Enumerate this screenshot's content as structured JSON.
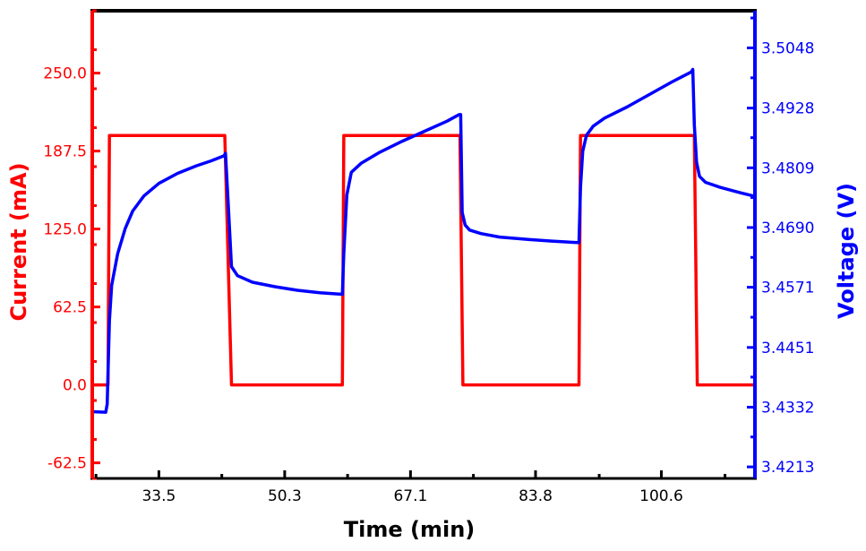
{
  "chart_data": {
    "type": "line",
    "title": "",
    "xlabel": "Time (min)",
    "ylabel_left": "Current (mA)",
    "ylabel_right": "Voltage (V)",
    "xlim": [
      24.6,
      113.1
    ],
    "ylim_left": [
      -75.0,
      300.0
    ],
    "ylim_right": [
      3.419,
      3.5122
    ],
    "x_ticks": [
      33.5,
      50.3,
      67.1,
      83.8,
      100.6
    ],
    "x_tick_labels": [
      "33.5",
      "50.3",
      "67.1",
      "83.8",
      "100.6"
    ],
    "y_left_ticks": [
      -62.5,
      0.0,
      62.5,
      125.0,
      187.5,
      250.0
    ],
    "y_left_tick_labels": [
      "-62.5",
      "0.0",
      "62.5",
      "125.0",
      "187.5",
      "250.0"
    ],
    "y_right_ticks": [
      3.4213,
      3.4332,
      3.4451,
      3.4571,
      3.469,
      3.4809,
      3.4928,
      3.5048
    ],
    "y_right_tick_labels": [
      "3.4213",
      "3.4332",
      "3.4451",
      "3.4571",
      "3.4690",
      "3.4809",
      "3.4928",
      "3.5048"
    ],
    "grid": false,
    "series": [
      {
        "name": "Current (mA)",
        "axis": "left",
        "color": "#ff0000",
        "x": [
          24.6,
          26.7,
          26.9,
          42.3,
          43.2,
          58.0,
          58.2,
          73.7,
          74.1,
          89.6,
          89.8,
          105.0,
          105.4,
          113.1
        ],
        "values": [
          0.0,
          0.0,
          200.0,
          200.0,
          0.0,
          0.0,
          200.0,
          200.0,
          0.0,
          0.0,
          200.0,
          200.0,
          0.0,
          0.0
        ]
      },
      {
        "name": "Voltage (V)",
        "axis": "right",
        "color": "#0000ff",
        "x": [
          24.6,
          26.4,
          26.6,
          26.9,
          27.2,
          28.0,
          29.0,
          30.0,
          31.5,
          33.5,
          36.0,
          38.5,
          40.5,
          42.2,
          42.4,
          42.8,
          43.2,
          44.0,
          46.0,
          49.0,
          52.0,
          55.0,
          57.8,
          58.0,
          58.2,
          58.6,
          59.2,
          60.5,
          63.0,
          66.0,
          69.0,
          72.0,
          73.6,
          73.8,
          74.0,
          74.4,
          75.0,
          76.5,
          79.0,
          83.0,
          86.0,
          89.4,
          89.6,
          89.8,
          90.1,
          90.6,
          91.5,
          93.0,
          96.0,
          99.0,
          102.0,
          104.6,
          104.8,
          105.0,
          105.3,
          105.7,
          106.5,
          108.5,
          111.0,
          113.1
        ],
        "values": [
          3.4323,
          3.4322,
          3.4338,
          3.4505,
          3.4575,
          3.4638,
          3.4688,
          3.4723,
          3.4753,
          3.4778,
          3.4798,
          3.4813,
          3.4823,
          3.4833,
          3.4838,
          3.4725,
          3.4612,
          3.4594,
          3.4581,
          3.4572,
          3.4565,
          3.456,
          3.4557,
          3.4557,
          3.4638,
          3.4755,
          3.48,
          3.4818,
          3.484,
          3.4862,
          3.4882,
          3.4902,
          3.4915,
          3.4915,
          3.472,
          3.4695,
          3.4685,
          3.4678,
          3.4671,
          3.4666,
          3.4663,
          3.466,
          3.466,
          3.477,
          3.4842,
          3.4874,
          3.4892,
          3.4908,
          3.493,
          3.4955,
          3.498,
          3.5,
          3.5005,
          3.4895,
          3.482,
          3.4792,
          3.478,
          3.477,
          3.476,
          3.4752
        ]
      }
    ]
  }
}
